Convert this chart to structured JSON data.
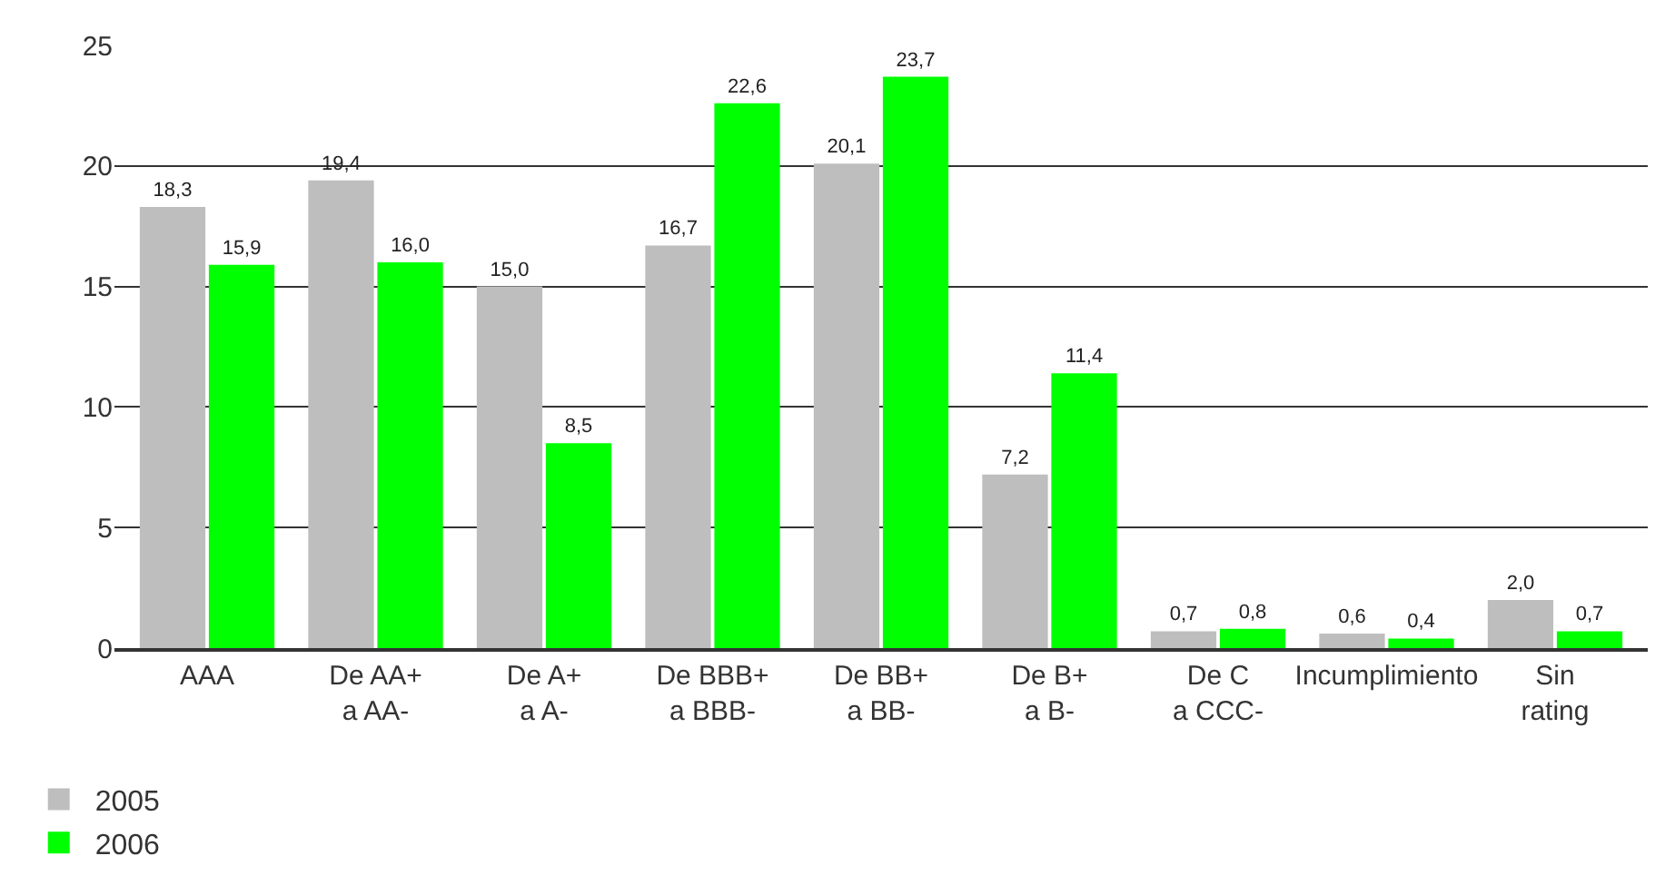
{
  "chart_data": {
    "type": "bar",
    "categories": [
      "AAA",
      "De AA+\na AA-",
      "De A+\na A-",
      "De BBB+\na BBB-",
      "De BB+\na BB-",
      "De B+\na B-",
      "De C\na CCC-",
      "Incumplimiento",
      "Sin\nrating"
    ],
    "series": [
      {
        "name": "2005",
        "color": "#bebebe",
        "values": [
          18.3,
          19.4,
          15.0,
          16.7,
          20.1,
          7.2,
          0.7,
          0.6,
          2.0
        ],
        "value_labels": [
          "18,3",
          "19,4",
          "15,0",
          "16,7",
          "20,1",
          "7,2",
          "0,7",
          "0,6",
          "2,0"
        ]
      },
      {
        "name": "2006",
        "color": "#00ff00",
        "values": [
          15.9,
          16.0,
          8.5,
          22.6,
          23.7,
          11.4,
          0.8,
          0.4,
          0.7
        ],
        "value_labels": [
          "15,9",
          "16,0",
          "8,5",
          "22,6",
          "23,7",
          "11,4",
          "0,8",
          "0,4",
          "0,7"
        ]
      }
    ],
    "ylim": [
      0,
      25
    ],
    "yticks": [
      0,
      5,
      10,
      15,
      20,
      25
    ],
    "grid": "y",
    "legend": "bottom left"
  }
}
